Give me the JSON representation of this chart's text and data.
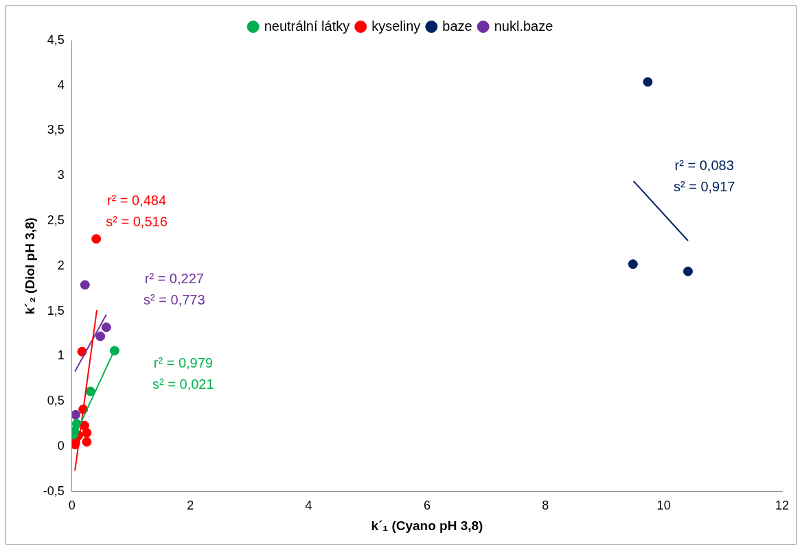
{
  "chart_data": {
    "type": "scatter",
    "xlabel": "k´₁ (Cyano pH 3,8)",
    "ylabel": "k´₂ (Diol pH 3,8)",
    "legend": "top",
    "marker": "circle",
    "grid": false,
    "xlim": [
      0,
      12
    ],
    "xticks": [
      0,
      2,
      4,
      6,
      8,
      10,
      12
    ],
    "ylim": [
      -0.5,
      4.5
    ],
    "yticks": [
      {
        "value": -0.5,
        "label": "-0,5"
      },
      0,
      {
        "value": 0.5,
        "label": "0,5"
      },
      1,
      {
        "value": 1.5,
        "label": "1,5"
      },
      2,
      {
        "value": 2.5,
        "label": "2,5"
      },
      3,
      {
        "value": 3.5,
        "label": "3,5"
      },
      4,
      {
        "value": 4.5,
        "label": "4,5"
      }
    ],
    "series": [
      {
        "name": "neutrální látky",
        "color": "#00b050",
        "x": [
          0.03,
          0.04,
          0.08,
          0.31,
          0.72
        ],
        "values": [
          0.13,
          0.17,
          0.25,
          0.61,
          1.06
        ]
      },
      {
        "name": "kyseliny",
        "color": "#ff0000",
        "x": [
          0.05,
          0.06,
          0.11,
          0.17,
          0.19,
          0.21,
          0.25,
          0.25,
          0.41
        ],
        "values": [
          0.02,
          0.05,
          0.12,
          1.05,
          0.41,
          0.23,
          0.15,
          0.05,
          2.3
        ]
      },
      {
        "name": "baze",
        "color": "#002060",
        "x": [
          9.48,
          9.73,
          10.41
        ],
        "values": [
          2.02,
          4.04,
          1.94
        ]
      },
      {
        "name": "nukl.baze",
        "color": "#7030a0",
        "x": [
          0.06,
          0.22,
          0.48,
          0.58
        ],
        "values": [
          0.35,
          1.79,
          1.22,
          1.32
        ]
      },
      {
        "type": "line",
        "marker": "none",
        "color": "#00b050",
        "x": [
          0.02,
          0.72
        ],
        "values": [
          0.08,
          1.07
        ]
      },
      {
        "type": "line",
        "marker": "none",
        "color": "#ff0000",
        "x": [
          0.05,
          0.42
        ],
        "values": [
          -0.27,
          1.51
        ]
      },
      {
        "type": "line",
        "marker": "none",
        "color": "#002060",
        "x": [
          9.49,
          10.41
        ],
        "values": [
          2.94,
          2.28
        ]
      },
      {
        "type": "line",
        "marker": "none",
        "color": "#7030a0",
        "x": [
          0.05,
          0.58
        ],
        "values": [
          0.83,
          1.46
        ]
      }
    ],
    "annotations": [
      "r² = 0,979\ns² = 0,021",
      "r² = 0,484\ns² = 0,516",
      "r² = 0,083\ns² = 0,917",
      "r² = 0,227\ns² = 0,773"
    ]
  }
}
